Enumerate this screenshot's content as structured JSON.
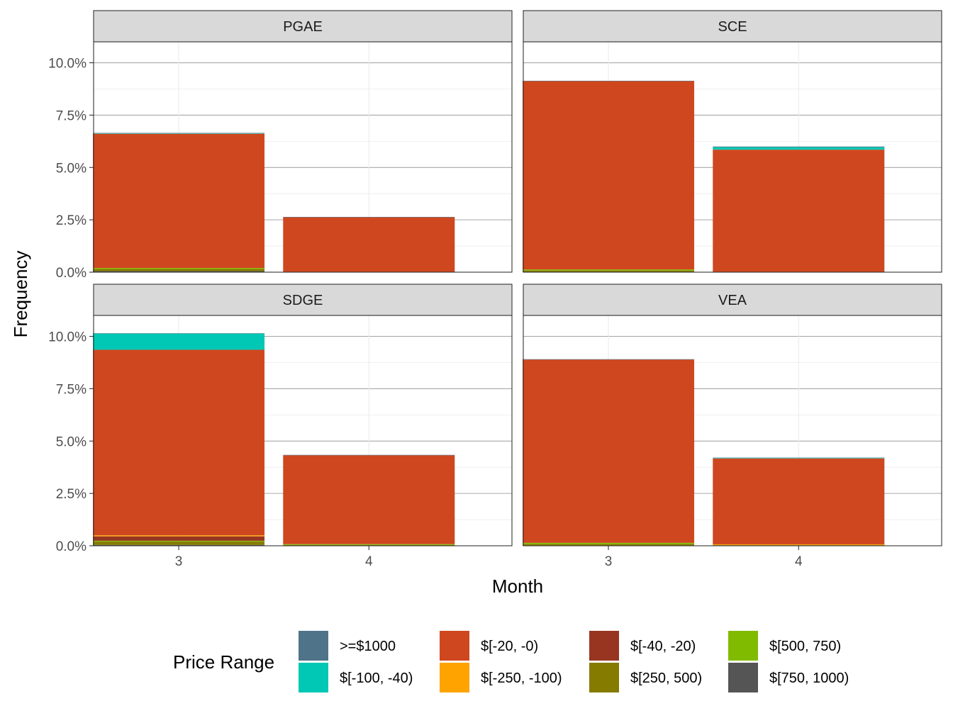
{
  "chart_data": {
    "type": "bar",
    "stacked": true,
    "faceted": true,
    "xlabel": "Month",
    "ylabel": "Frequency",
    "ylim": [
      0,
      0.11
    ],
    "yticks": [
      0,
      0.025,
      0.05,
      0.075,
      0.1
    ],
    "ytick_labels": [
      "0.0%",
      "2.5%",
      "5.0%",
      "7.5%",
      "10.0%"
    ],
    "categories": [
      "3",
      "4"
    ],
    "grid": true,
    "legend": {
      "title": "Price Range",
      "position": "bottom",
      "entries": [
        {
          "label": ">=$1000",
          "color": "#4f7389"
        },
        {
          "label": "$[-100, -40)",
          "color": "#00c8b4"
        },
        {
          "label": "$[-20, -0)",
          "color": "#cf471f"
        },
        {
          "label": "$[-250, -100)",
          "color": "#ffa300"
        },
        {
          "label": "$[-40, -20)",
          "color": "#973521"
        },
        {
          "label": "$[250, 500)",
          "color": "#857b00"
        },
        {
          "label": "$[500, 750)",
          "color": "#81bb00"
        },
        {
          "label": "$[750, 1000)",
          "color": "#555555"
        }
      ]
    },
    "stack_order": [
      "$[750, 1000)",
      "$[250, 500)",
      "$[500, 750)",
      "$[-40, -20)",
      "$[-250, -100)",
      "$[-20, -0)",
      "$[-100, -40)",
      ">=$1000"
    ],
    "facets": [
      {
        "name": "PGAE",
        "bars": [
          {
            "month": "3",
            "segments": {
              "$[750, 1000)": 0.0005,
              "$[250, 500)": 0.001,
              "$[500, 750)": 0.0005,
              "$[-20, -0)": 0.0641,
              "$[-100, -40)": 0.0002,
              ">=$1000": 0.0002
            }
          },
          {
            "month": "4",
            "segments": {
              "$[-20, -0)": 0.0262,
              ">=$1000": 0.0002
            }
          }
        ]
      },
      {
        "name": "SCE",
        "bars": [
          {
            "month": "3",
            "segments": {
              "$[250, 500)": 0.0008,
              "$[500, 750)": 0.0005,
              "$[-20, -0)": 0.0899,
              ">=$1000": 0.0002
            }
          },
          {
            "month": "4",
            "segments": {
              "$[-20, -0)": 0.0585,
              "$[-100, -40)": 0.0012,
              ">=$1000": 0.0003
            }
          }
        ]
      },
      {
        "name": "SDGE",
        "bars": [
          {
            "month": "3",
            "segments": {
              "$[750, 1000)": 0.0004,
              "$[250, 500)": 0.0016,
              "$[500, 750)": 0.0004,
              "$[-40, -20)": 0.0021,
              "$[-250, -100)": 0.0005,
              "$[-20, -0)": 0.0886,
              "$[-100, -40)": 0.0077,
              ">=$1000": 0.0002
            }
          },
          {
            "month": "4",
            "segments": {
              "$[250, 500)": 0.0004,
              "$[500, 750)": 0.0004,
              "$[-20, -0)": 0.0424,
              ">=$1000": 0.0002
            }
          }
        ]
      },
      {
        "name": "VEA",
        "bars": [
          {
            "month": "3",
            "segments": {
              "$[250, 500)": 0.0008,
              "$[500, 750)": 0.0006,
              "$[-20, -0)": 0.0875,
              ">=$1000": 0.0002
            }
          },
          {
            "month": "4",
            "segments": {
              "$[250, 500)": 0.0003,
              "$[-250, -100)": 0.0004,
              "$[-20, -0)": 0.041,
              "$[-100, -40)": 0.0002,
              ">=$1000": 0.0002
            }
          }
        ]
      }
    ]
  }
}
